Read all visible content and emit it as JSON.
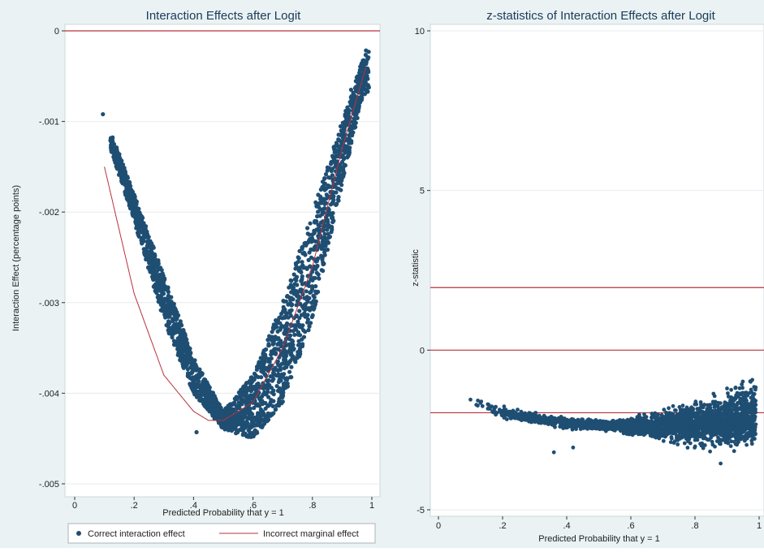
{
  "chart_data": [
    {
      "type": "scatter",
      "title": "Interaction Effects after Logit",
      "xlabel": "Predicted Probability that y = 1",
      "ylabel": "Interaction Effect (percentage points)",
      "xlim": [
        0,
        1
      ],
      "ylim": [
        -0.005,
        0
      ],
      "x_ticks": [
        "0",
        ".2",
        ".4",
        ".6",
        ".8",
        "1"
      ],
      "y_ticks": [
        "0",
        "-.001",
        "-.002",
        "-.003",
        "-.004",
        "-.005"
      ],
      "reference_lines": [
        0
      ],
      "series": [
        {
          "name": "Correct interaction effect",
          "kind": "point-cloud",
          "color": "#1f4e73",
          "x_range": [
            0.1,
            0.99
          ],
          "lower_curve": [
            [
              0.1,
              -0.0011
            ],
            [
              0.2,
              -0.0021
            ],
            [
              0.3,
              -0.0032
            ],
            [
              0.4,
              -0.004
            ],
            [
              0.5,
              -0.0044
            ],
            [
              0.6,
              -0.0045
            ],
            [
              0.7,
              -0.0041
            ],
            [
              0.8,
              -0.0032
            ],
            [
              0.9,
              -0.0017
            ],
            [
              0.97,
              -0.0007
            ]
          ],
          "upper_curve": [
            [
              0.12,
              -0.0011
            ],
            [
              0.2,
              -0.0018
            ],
            [
              0.3,
              -0.0027
            ],
            [
              0.4,
              -0.0036
            ],
            [
              0.5,
              -0.0042
            ],
            [
              0.6,
              -0.0038
            ],
            [
              0.7,
              -0.003
            ],
            [
              0.8,
              -0.002
            ],
            [
              0.9,
              -0.001
            ],
            [
              0.98,
              -0.0002
            ]
          ]
        },
        {
          "name": "Incorrect marginal effect",
          "kind": "line",
          "color": "#b8323c",
          "points": [
            [
              0.1,
              -0.0015
            ],
            [
              0.2,
              -0.0029
            ],
            [
              0.3,
              -0.0038
            ],
            [
              0.4,
              -0.0042
            ],
            [
              0.45,
              -0.0043
            ],
            [
              0.5,
              -0.0043
            ],
            [
              0.6,
              -0.0041
            ],
            [
              0.7,
              -0.0035
            ],
            [
              0.8,
              -0.0026
            ],
            [
              0.9,
              -0.0013
            ],
            [
              0.98,
              -0.0004
            ]
          ]
        }
      ],
      "legend": "bottom"
    },
    {
      "type": "scatter",
      "title": "z-statistics of Interaction Effects after Logit",
      "xlabel": "Predicted Probability that y = 1",
      "ylabel": "z-statistic",
      "xlim": [
        0,
        1
      ],
      "ylim": [
        -5,
        10
      ],
      "x_ticks": [
        "0",
        ".2",
        ".4",
        ".6",
        ".8",
        "1"
      ],
      "y_ticks": [
        "10",
        "5",
        "0",
        "-5"
      ],
      "reference_lines": [
        1.96,
        0,
        -1.96
      ],
      "series": [
        {
          "name": "",
          "kind": "point-cloud",
          "color": "#1f4e73",
          "x_range": [
            0.1,
            0.99
          ],
          "center_curve": [
            [
              0.1,
              -1.6
            ],
            [
              0.2,
              -1.95
            ],
            [
              0.3,
              -2.15
            ],
            [
              0.4,
              -2.3
            ],
            [
              0.5,
              -2.35
            ],
            [
              0.6,
              -2.4
            ],
            [
              0.7,
              -2.35
            ],
            [
              0.8,
              -2.3
            ],
            [
              0.9,
              -2.2
            ],
            [
              0.98,
              -2.0
            ]
          ]
        }
      ]
    }
  ],
  "colors": {
    "background": "#eaf2f3",
    "plot": "#ffffff",
    "points": "#1f4e73",
    "lines": "#b8323c"
  }
}
